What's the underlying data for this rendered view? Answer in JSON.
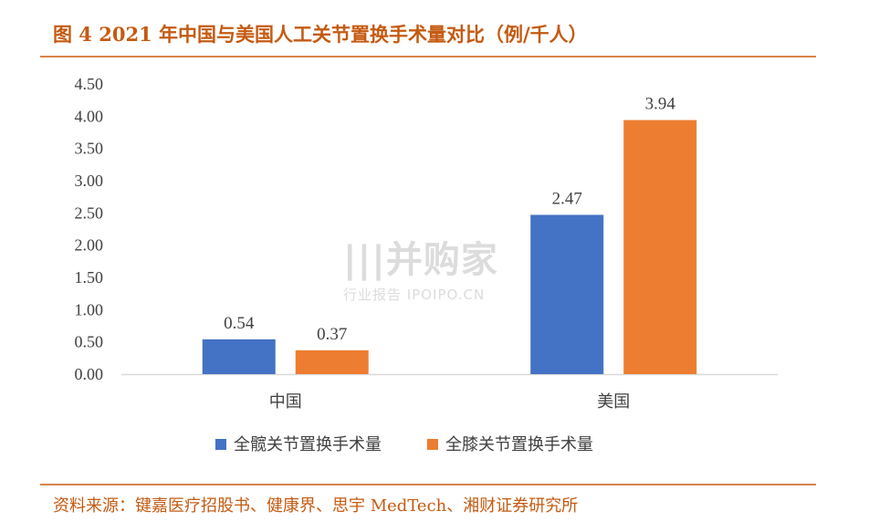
{
  "figure_title": "图 4 2021 年中国与美国人工关节置换手术量对比（例/千人）",
  "source_note": "资料来源：键嘉医疗招股书、健康界、思宇 MedTech、湘财证券研究所",
  "watermark": {
    "main": "|||并购家",
    "sub": "行业报告 IPOIPO.CN"
  },
  "colors": {
    "accent": "#c55a11",
    "series_blue": "#4472c4",
    "series_orange": "#ed7d31"
  },
  "chart_data": {
    "type": "bar",
    "categories": [
      "中国",
      "美国"
    ],
    "series": [
      {
        "name": "全髋关节置换手术量",
        "values": [
          0.54,
          2.47
        ]
      },
      {
        "name": "全膝关节置换手术量",
        "values": [
          0.37,
          3.94
        ]
      }
    ],
    "y_ticks": [
      "0.00",
      "0.50",
      "1.00",
      "1.50",
      "2.00",
      "2.50",
      "3.00",
      "3.50",
      "4.00",
      "4.50"
    ],
    "ylim": [
      0,
      4.5
    ],
    "data_labels": [
      [
        "0.54",
        "2.47"
      ],
      [
        "0.37",
        "3.94"
      ]
    ],
    "legend_position": "bottom",
    "grid": false
  }
}
